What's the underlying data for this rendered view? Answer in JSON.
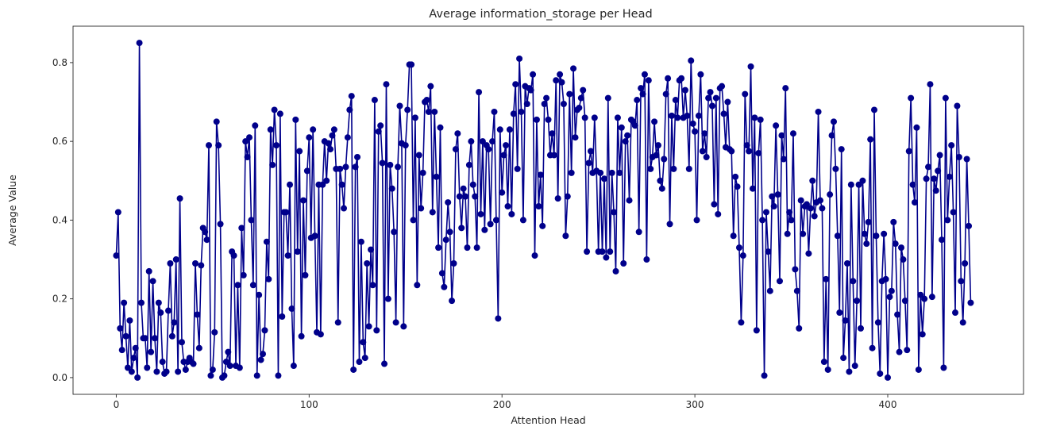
{
  "chart_data": {
    "type": "line",
    "title": "Average information_storage per Head",
    "xlabel": "Attention Head",
    "ylabel": "Average Value",
    "xlim": [
      -22.4,
      470.4
    ],
    "ylim": [
      -0.0425,
      0.8925
    ],
    "xticks": [
      0,
      100,
      200,
      300,
      400
    ],
    "yticks": [
      0.0,
      0.2,
      0.4,
      0.6,
      0.8
    ],
    "xtick_labels": [
      "0",
      "100",
      "200",
      "300",
      "400"
    ],
    "ytick_labels": [
      "0.0",
      "0.2",
      "0.4",
      "0.6",
      "0.8"
    ],
    "grid": false,
    "marker": "circle",
    "line_color": "#00008b",
    "series": [
      {
        "x_start": 0,
        "values": [
          0.31,
          0.42,
          0.125,
          0.07,
          0.19,
          0.105,
          0.025,
          0.145,
          0.015,
          0.05,
          0.075,
          0.0,
          0.85,
          0.19,
          0.1,
          0.1,
          0.025,
          0.27,
          0.065,
          0.245,
          0.1,
          0.015,
          0.19,
          0.165,
          0.04,
          0.01,
          0.015,
          0.17,
          0.29,
          0.105,
          0.14,
          0.3,
          0.015,
          0.455,
          0.09,
          0.04,
          0.02,
          0.04,
          0.05,
          0.04,
          0.035,
          0.29,
          0.16,
          0.075,
          0.285,
          0.38,
          0.37,
          0.35,
          0.59,
          0.005,
          0.02,
          0.115,
          0.65,
          0.59,
          0.39,
          0.0,
          0.005,
          0.04,
          0.065,
          0.03,
          0.32,
          0.31,
          0.03,
          0.235,
          0.025,
          0.38,
          0.26,
          0.6,
          0.56,
          0.61,
          0.4,
          0.235,
          0.64,
          0.005,
          0.21,
          0.045,
          0.06,
          0.12,
          0.345,
          0.25,
          0.63,
          0.54,
          0.68,
          0.59,
          0.005,
          0.67,
          0.155,
          0.42,
          0.42,
          0.31,
          0.49,
          0.175,
          0.03,
          0.655,
          0.32,
          0.575,
          0.105,
          0.45,
          0.26,
          0.525,
          0.61,
          0.355,
          0.63,
          0.36,
          0.115,
          0.49,
          0.11,
          0.49,
          0.6,
          0.5,
          0.595,
          0.58,
          0.615,
          0.63,
          0.53,
          0.14,
          0.53,
          0.49,
          0.43,
          0.535,
          0.61,
          0.68,
          0.715,
          0.02,
          0.535,
          0.56,
          0.04,
          0.345,
          0.09,
          0.05,
          0.29,
          0.13,
          0.325,
          0.235,
          0.705,
          0.12,
          0.625,
          0.64,
          0.545,
          0.035,
          0.745,
          0.2,
          0.54,
          0.48,
          0.37,
          0.14,
          0.535,
          0.69,
          0.595,
          0.13,
          0.59,
          0.68,
          0.795,
          0.795,
          0.4,
          0.66,
          0.235,
          0.565,
          0.43,
          0.52,
          0.7,
          0.705,
          0.675,
          0.74,
          0.42,
          0.675,
          0.51,
          0.33,
          0.635,
          0.265,
          0.23,
          0.35,
          0.445,
          0.37,
          0.195,
          0.29,
          0.58,
          0.62,
          0.46,
          0.38,
          0.48,
          0.46,
          0.33,
          0.54,
          0.6,
          0.49,
          0.46,
          0.33,
          0.725,
          0.415,
          0.6,
          0.375,
          0.59,
          0.58,
          0.39,
          0.6,
          0.675,
          0.4,
          0.15,
          0.63,
          0.47,
          0.565,
          0.59,
          0.435,
          0.63,
          0.415,
          0.67,
          0.745,
          0.53,
          0.81,
          0.675,
          0.4,
          0.74,
          0.695,
          0.735,
          0.73,
          0.77,
          0.31,
          0.655,
          0.435,
          0.515,
          0.385,
          0.695,
          0.71,
          0.655,
          0.565,
          0.62,
          0.565,
          0.755,
          0.455,
          0.77,
          0.75,
          0.695,
          0.36,
          0.46,
          0.72,
          0.52,
          0.785,
          0.61,
          0.68,
          0.685,
          0.71,
          0.73,
          0.66,
          0.32,
          0.545,
          0.575,
          0.52,
          0.66,
          0.525,
          0.32,
          0.52,
          0.32,
          0.505,
          0.305,
          0.71,
          0.32,
          0.52,
          0.42,
          0.27,
          0.66,
          0.52,
          0.635,
          0.29,
          0.6,
          0.615,
          0.45,
          0.655,
          0.65,
          0.64,
          0.705,
          0.37,
          0.735,
          0.72,
          0.77,
          0.3,
          0.755,
          0.53,
          0.56,
          0.65,
          0.565,
          0.59,
          0.5,
          0.48,
          0.555,
          0.72,
          0.76,
          0.39,
          0.665,
          0.53,
          0.705,
          0.66,
          0.755,
          0.76,
          0.66,
          0.73,
          0.665,
          0.53,
          0.805,
          0.645,
          0.625,
          0.4,
          0.665,
          0.77,
          0.575,
          0.62,
          0.56,
          0.71,
          0.725,
          0.69,
          0.44,
          0.71,
          0.415,
          0.735,
          0.74,
          0.67,
          0.585,
          0.7,
          0.58,
          0.575,
          0.36,
          0.51,
          0.485,
          0.33,
          0.14,
          0.31,
          0.72,
          0.59,
          0.575,
          0.79,
          0.48,
          0.66,
          0.12,
          0.57,
          0.655,
          0.4,
          0.005,
          0.42,
          0.32,
          0.22,
          0.46,
          0.435,
          0.64,
          0.465,
          0.245,
          0.615,
          0.555,
          0.735,
          0.365,
          0.42,
          0.4,
          0.62,
          0.275,
          0.22,
          0.125,
          0.45,
          0.365,
          0.435,
          0.44,
          0.315,
          0.43,
          0.5,
          0.41,
          0.445,
          0.675,
          0.45,
          0.43,
          0.04,
          0.25,
          0.02,
          0.465,
          0.615,
          0.65,
          0.53,
          0.36,
          0.165,
          0.58,
          0.05,
          0.145,
          0.29,
          0.015,
          0.49,
          0.245,
          0.03,
          0.195,
          0.49,
          0.125,
          0.5,
          0.365,
          0.34,
          0.395,
          0.605,
          0.075,
          0.68,
          0.36,
          0.14,
          0.01,
          0.245,
          0.365,
          0.25,
          0.0,
          0.205,
          0.22,
          0.395,
          0.34,
          0.16,
          0.065,
          0.33,
          0.3,
          0.195,
          0.07,
          0.575,
          0.71,
          0.49,
          0.445,
          0.635,
          0.02,
          0.21,
          0.11,
          0.2,
          0.505,
          0.535,
          0.745,
          0.205,
          0.505,
          0.475,
          0.525,
          0.565,
          0.35,
          0.025,
          0.71,
          0.4,
          0.51,
          0.59,
          0.42,
          0.165,
          0.69,
          0.56,
          0.245,
          0.14,
          0.29,
          0.555,
          0.385,
          0.19
        ]
      }
    ]
  }
}
